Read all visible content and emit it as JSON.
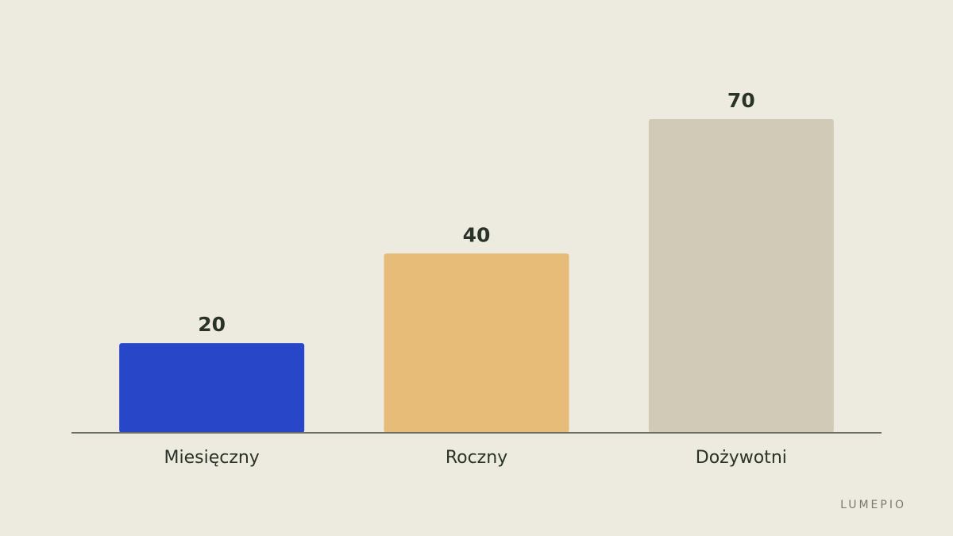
{
  "chart_data": {
    "type": "bar",
    "categories": [
      "Miesięczny",
      "Roczny",
      "Dożywotni"
    ],
    "values": [
      20,
      40,
      70
    ],
    "colors": [
      "#2847c8",
      "#e6bc78",
      "#d0cab6"
    ]
  },
  "brand": "LUMEPIO"
}
